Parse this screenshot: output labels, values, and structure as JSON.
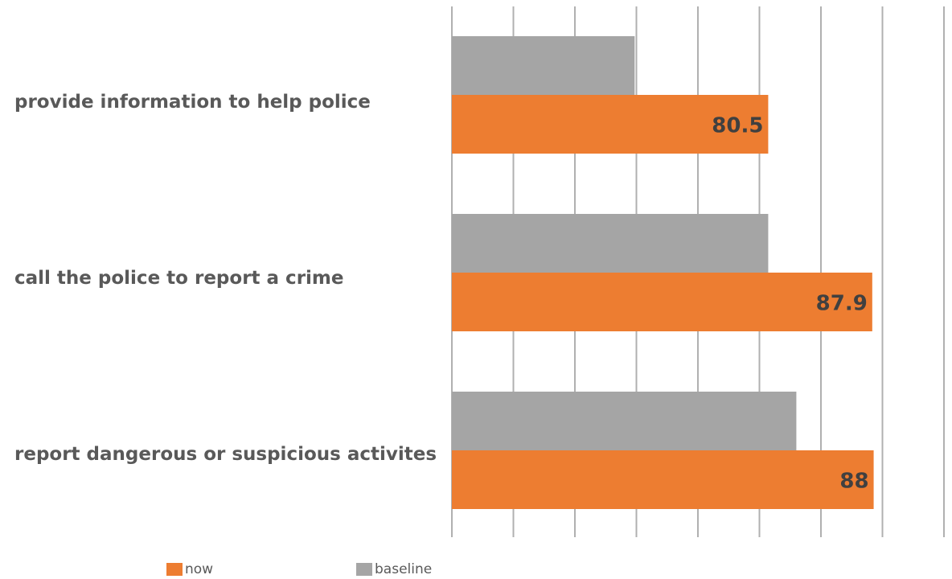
{
  "chart_data": {
    "type": "bar",
    "orientation": "horizontal",
    "categories": [
      "provide information to help police",
      "call the police to report a crime",
      "report dangerous or suspicious activites"
    ],
    "series": [
      {
        "name": "baseline",
        "color": "#a5a5a5",
        "values": [
          71,
          80.5,
          82.5
        ]
      },
      {
        "name": "now",
        "color": "#ed7d31",
        "values": [
          80.5,
          87.9,
          88
        ]
      }
    ],
    "data_labels": {
      "now": [
        "80.5",
        "87.9",
        "88"
      ]
    },
    "xlim": [
      58,
      93
    ],
    "grid": true,
    "gridline_count": 9,
    "legend_position": "bottom-left"
  },
  "legend": {
    "now_label": "now",
    "baseline_label": "baseline"
  },
  "colors": {
    "now": "#ed7d31",
    "baseline": "#a5a5a5",
    "grid": "#b0b0b0",
    "text": "#595959"
  }
}
